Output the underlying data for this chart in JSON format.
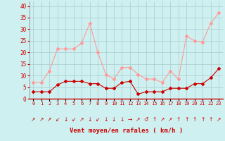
{
  "hours": [
    0,
    1,
    2,
    3,
    4,
    5,
    6,
    7,
    8,
    9,
    10,
    11,
    12,
    13,
    14,
    15,
    16,
    17,
    18,
    19,
    20,
    21,
    22,
    23
  ],
  "wind_avg": [
    3,
    3,
    3,
    6,
    7.5,
    7.5,
    7.5,
    6.5,
    6.5,
    4.5,
    4.5,
    7,
    7.5,
    2,
    3,
    3,
    3,
    4.5,
    4.5,
    4.5,
    6.5,
    6.5,
    9,
    13
  ],
  "wind_gust": [
    7,
    7,
    12,
    21.5,
    21.5,
    21.5,
    24,
    32.5,
    20,
    10.5,
    8.5,
    13.5,
    13.5,
    10.5,
    8.5,
    8.5,
    7,
    12,
    8.5,
    27,
    25,
    24.5,
    32.5,
    37
  ],
  "wind_avg_color": "#cc0000",
  "wind_gust_color": "#ff9999",
  "bg_color": "#cff0f0",
  "grid_color": "#aacccc",
  "xlabel": "Vent moyen/en rafales ( km/h )",
  "xlabel_color": "#cc0000",
  "ylabel_ticks": [
    0,
    5,
    10,
    15,
    20,
    25,
    30,
    35,
    40
  ],
  "ylim": [
    0,
    42
  ],
  "xlim": [
    -0.5,
    23.5
  ],
  "arrow_symbols": [
    "↗",
    "↗",
    "↗",
    "↙",
    "↓",
    "↙",
    "↗",
    "↓",
    "↙",
    "↓",
    "↓",
    "↓",
    "→",
    "↗",
    "↺",
    "↑",
    "↗",
    "↗",
    "↑",
    "↑",
    "↑",
    "↑",
    "↑",
    "↗"
  ]
}
